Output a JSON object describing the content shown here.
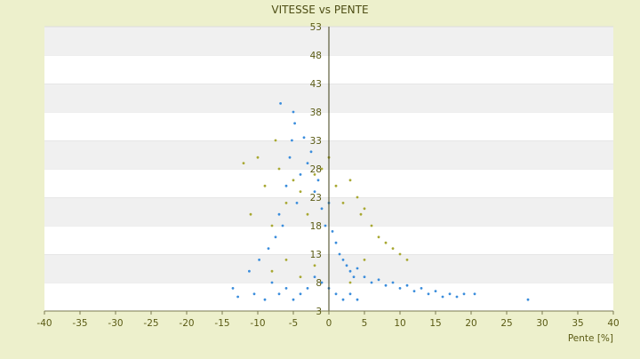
{
  "colors": {
    "background": "#edf0cc",
    "plot_band_light": "#ffffff",
    "plot_band_dark": "#f0f0f0",
    "axis_text": "#5a5a14",
    "title_text": "#4d4d14",
    "series_primary": "#3a8ddc",
    "series_secondary": "#a8a832"
  },
  "chart_data": {
    "type": "scatter",
    "title": "VITESSE vs PENTE",
    "xlabel": "Pente [%]",
    "ylabel": "",
    "xlim": [
      -40,
      40
    ],
    "ylim": [
      3,
      53
    ],
    "x_ticks": [
      "-40",
      "-35",
      "-30",
      "-25",
      "-20",
      "-15",
      "-10",
      "-5",
      "0",
      "5",
      "10",
      "15",
      "20",
      "25",
      "30",
      "35",
      "40"
    ],
    "y_ticks": [
      "3",
      "8",
      "13",
      "18",
      "23",
      "28",
      "33",
      "38",
      "43",
      "48",
      "53"
    ],
    "grid": "alternating horizontal bands",
    "legend": "none",
    "y_axis_position": "x = 0",
    "series": [
      {
        "color": "#3a8ddc",
        "points": [
          [
            -13.5,
            7
          ],
          [
            -12.8,
            5.5
          ],
          [
            -11.2,
            10
          ],
          [
            -10.5,
            6
          ],
          [
            -9.8,
            12
          ],
          [
            -9,
            5
          ],
          [
            -8.5,
            14
          ],
          [
            -8,
            8
          ],
          [
            -7.5,
            16
          ],
          [
            -7,
            20
          ],
          [
            -6.8,
            39.5
          ],
          [
            -6.5,
            18
          ],
          [
            -6,
            25
          ],
          [
            -5.5,
            30
          ],
          [
            -5.2,
            33
          ],
          [
            -5,
            38
          ],
          [
            -4.8,
            36
          ],
          [
            -4.5,
            22
          ],
          [
            -4,
            27
          ],
          [
            -3.5,
            33.5
          ],
          [
            -3,
            29
          ],
          [
            -2.5,
            31
          ],
          [
            -2,
            24
          ],
          [
            -1.5,
            26
          ],
          [
            -1,
            21
          ],
          [
            -0.5,
            18
          ],
          [
            0,
            22
          ],
          [
            0.5,
            17
          ],
          [
            1,
            15
          ],
          [
            1.5,
            13
          ],
          [
            2,
            12
          ],
          [
            2.5,
            11
          ],
          [
            3,
            10
          ],
          [
            3.5,
            9
          ],
          [
            4,
            10.5
          ],
          [
            5,
            9
          ],
          [
            6,
            8
          ],
          [
            7,
            8.5
          ],
          [
            8,
            7.5
          ],
          [
            9,
            8
          ],
          [
            10,
            7
          ],
          [
            11,
            7.5
          ],
          [
            12,
            6.5
          ],
          [
            13,
            7
          ],
          [
            14,
            6
          ],
          [
            15,
            6.5
          ],
          [
            16,
            5.5
          ],
          [
            17,
            6
          ],
          [
            18,
            5.5
          ],
          [
            19,
            6
          ],
          [
            20.5,
            6
          ],
          [
            28,
            5
          ],
          [
            -2,
            9
          ],
          [
            -1,
            8
          ],
          [
            0,
            7
          ],
          [
            1,
            6
          ],
          [
            2,
            5
          ],
          [
            3,
            6
          ],
          [
            4,
            5
          ],
          [
            -3,
            7
          ],
          [
            -4,
            6
          ],
          [
            -5,
            5
          ],
          [
            -6,
            7
          ],
          [
            -7,
            6
          ]
        ]
      },
      {
        "color": "#a8a832",
        "points": [
          [
            -12,
            29
          ],
          [
            -11,
            20
          ],
          [
            -10,
            30
          ],
          [
            -9,
            25
          ],
          [
            -8,
            18
          ],
          [
            -7.5,
            33
          ],
          [
            -7,
            28
          ],
          [
            -6,
            22
          ],
          [
            -5,
            26
          ],
          [
            -4,
            24
          ],
          [
            -3,
            20
          ],
          [
            -2,
            27
          ],
          [
            -1,
            28
          ],
          [
            0,
            30
          ],
          [
            1,
            25
          ],
          [
            2,
            22
          ],
          [
            3,
            26
          ],
          [
            4,
            23
          ],
          [
            4.5,
            20
          ],
          [
            5,
            21
          ],
          [
            6,
            18
          ],
          [
            7,
            16
          ],
          [
            8,
            15
          ],
          [
            9,
            14
          ],
          [
            10,
            13
          ],
          [
            11,
            12
          ],
          [
            -8,
            10
          ],
          [
            -6,
            12
          ],
          [
            -4,
            9
          ],
          [
            -2,
            11
          ],
          [
            3,
            8
          ],
          [
            5,
            12
          ]
        ]
      }
    ]
  }
}
